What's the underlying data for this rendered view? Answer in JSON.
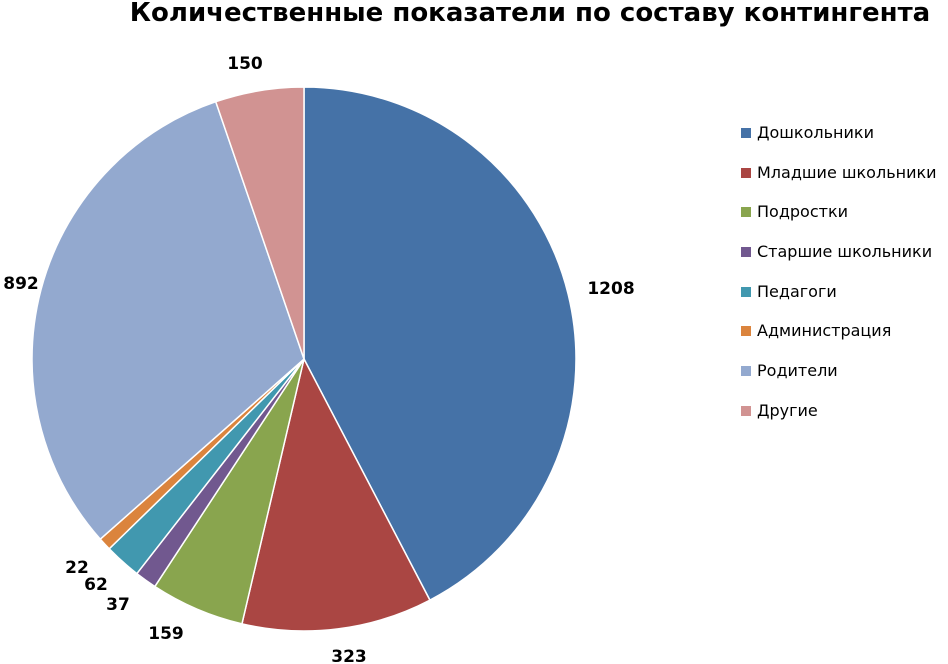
{
  "chart_data": {
    "type": "pie",
    "title": "Количественные показатели по составу контингента",
    "categories": [
      "Дошкольники",
      "Младшие школьники",
      "Подростки",
      "Старшие школьники",
      "Педагоги",
      "Администрация",
      "Родители",
      "Другие"
    ],
    "values": [
      1208,
      323,
      159,
      37,
      62,
      22,
      892,
      150
    ],
    "colors": [
      "#4572A7",
      "#AA4643",
      "#89A54E",
      "#71588F",
      "#4198AF",
      "#DB843D",
      "#93A9CF",
      "#D19392"
    ],
    "legend_position": "right",
    "start_angle": "top",
    "direction": "clockwise",
    "data_labels": "outside"
  }
}
